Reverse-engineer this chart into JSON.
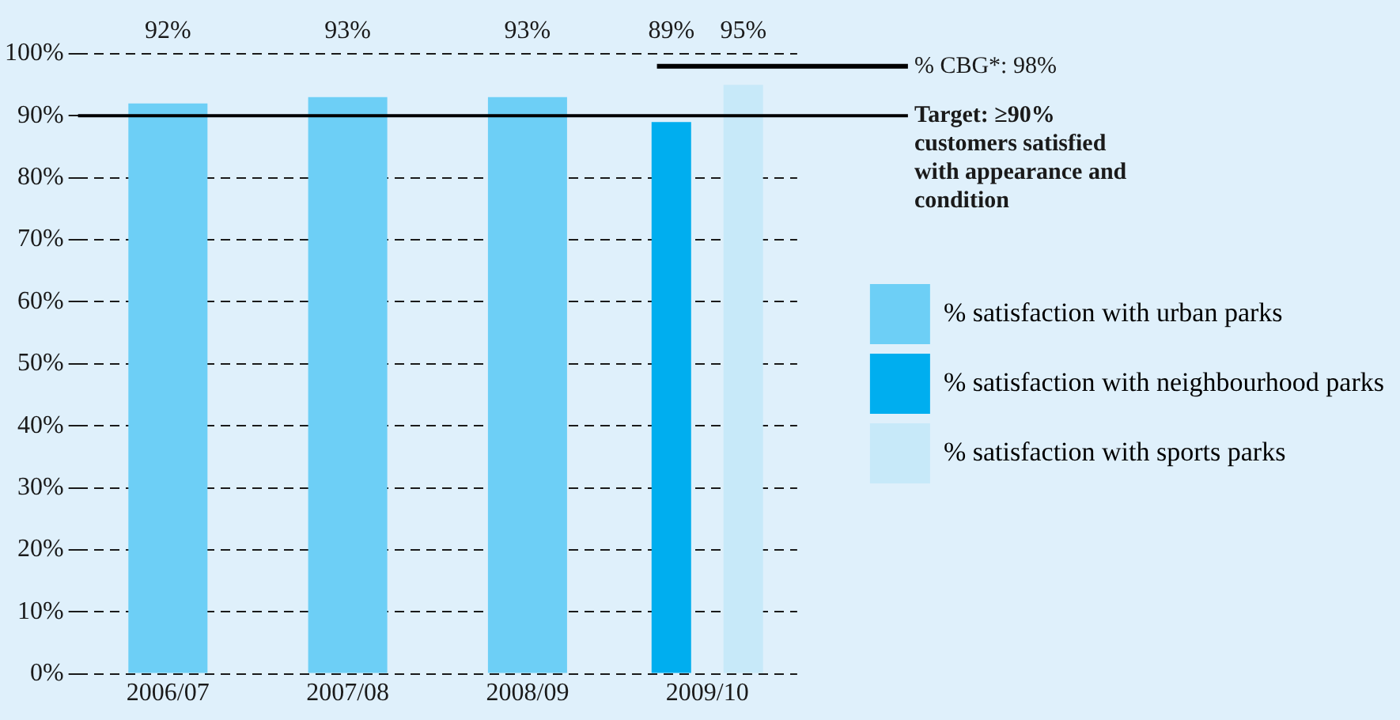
{
  "chart_data": {
    "type": "bar",
    "categories": [
      "2006/07",
      "2007/08",
      "2008/09",
      "2009/10"
    ],
    "series": [
      {
        "name": "% satisfaction with urban parks",
        "color": "#6dcff6",
        "values": [
          92,
          93,
          93,
          null
        ],
        "value_labels": [
          "92%",
          "93%",
          "93%",
          null
        ]
      },
      {
        "name": "% satisfaction with neighbourhood parks",
        "color": "#00aeef",
        "values": [
          null,
          null,
          null,
          89
        ],
        "value_labels": [
          null,
          null,
          null,
          "89%"
        ]
      },
      {
        "name": "% satisfaction with sports parks",
        "color": "#c7e9f9",
        "values": [
          null,
          null,
          null,
          95
        ],
        "value_labels": [
          null,
          null,
          null,
          "95%"
        ]
      }
    ],
    "ylim": [
      0,
      100
    ],
    "yticks": [
      {
        "value": 0,
        "label": "0%"
      },
      {
        "value": 10,
        "label": "10%"
      },
      {
        "value": 20,
        "label": "20%"
      },
      {
        "value": 30,
        "label": "30%"
      },
      {
        "value": 40,
        "label": "40%"
      },
      {
        "value": 50,
        "label": "50%"
      },
      {
        "value": 60,
        "label": "60%"
      },
      {
        "value": 70,
        "label": "70%"
      },
      {
        "value": 80,
        "label": "80%"
      },
      {
        "value": 90,
        "label": "90%"
      },
      {
        "value": 100,
        "label": "100%"
      }
    ],
    "ref_lines": [
      {
        "axis": "y",
        "value": 98,
        "label": "% CBG*: 98%",
        "color": "#000000"
      },
      {
        "axis": "y",
        "value": 90,
        "label": "Target: ≥90% customers satisfied with appearance and condition",
        "color": "#000000"
      }
    ],
    "grid": "y",
    "legend": "right"
  }
}
